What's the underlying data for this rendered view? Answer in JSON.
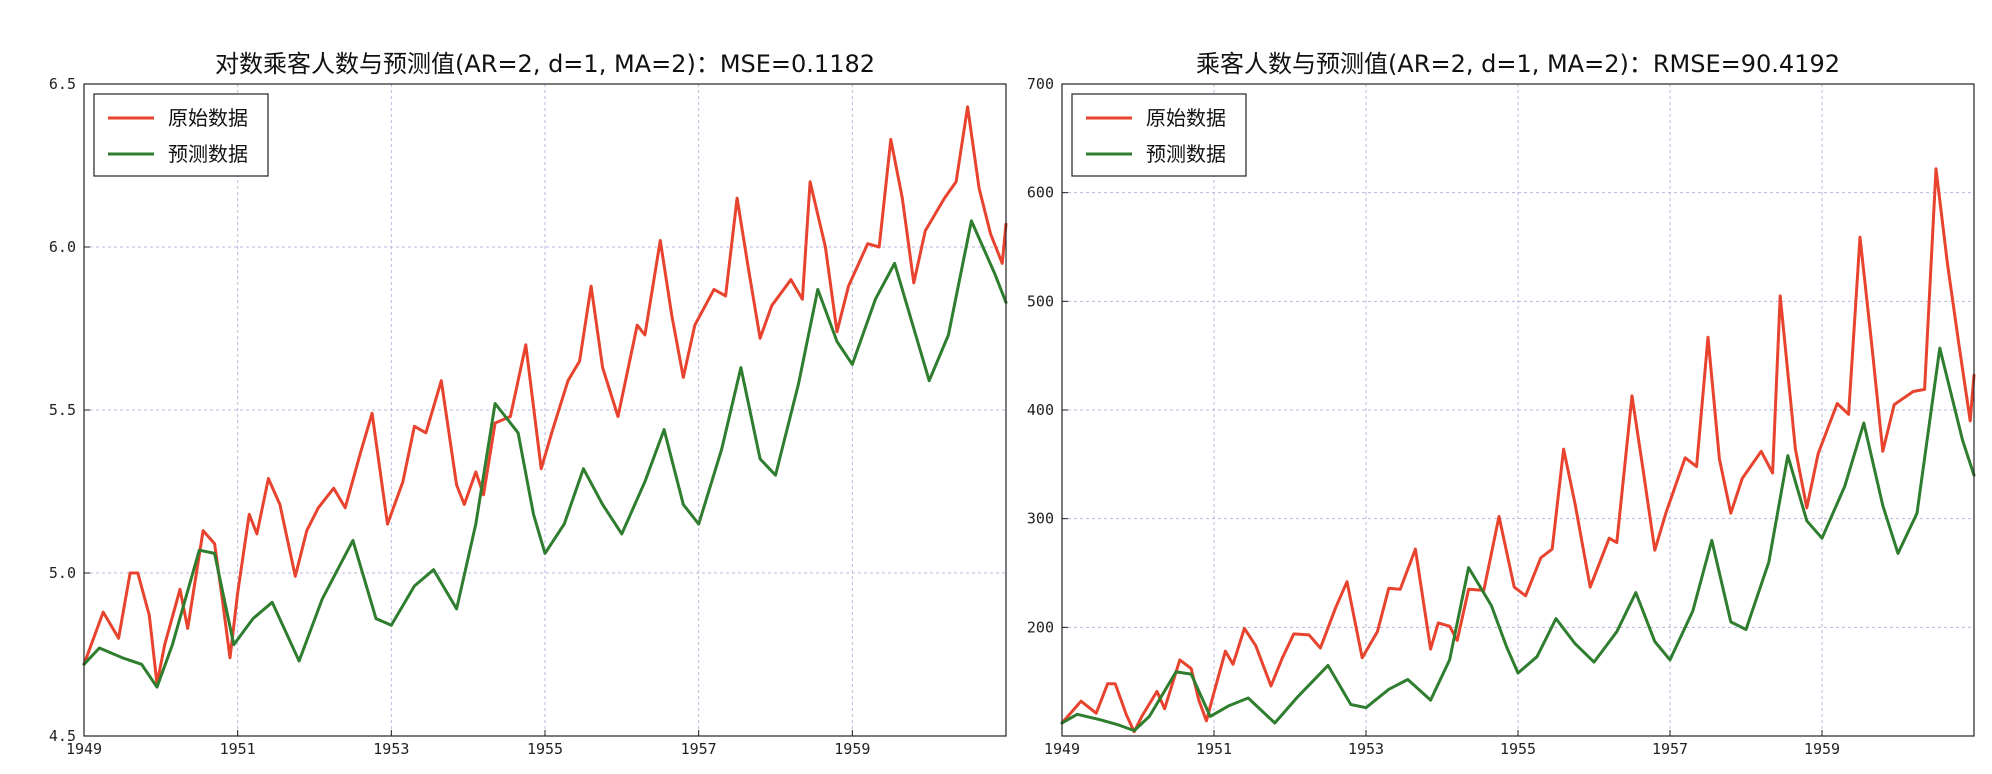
{
  "chart_data": [
    {
      "type": "line",
      "title": "对数乘客人数与预测值(AR=2, d=1, MA=2)：MSE=0.1182",
      "xlabel": "",
      "ylabel": "",
      "xlim": [
        1949,
        1961
      ],
      "ylim": [
        4.5,
        6.5
      ],
      "xticks": [
        "1949",
        "1951",
        "1953",
        "1955",
        "1957",
        "1959"
      ],
      "xtick_values": [
        1949,
        1951,
        1953,
        1955,
        1957,
        1959
      ],
      "yticks": [
        "4.5",
        "5.0",
        "5.5",
        "6.0",
        "6.5"
      ],
      "ytick_values": [
        4.5,
        5.0,
        5.5,
        6.0,
        6.5
      ],
      "grid": true,
      "legend": "top-left",
      "series": [
        {
          "name": "原始数据",
          "color": "#e8432e",
          "x": [
            1949.0,
            1949.25,
            1949.45,
            1949.6,
            1949.7,
            1949.85,
            1949.95,
            1950.05,
            1950.25,
            1950.35,
            1950.55,
            1950.7,
            1950.8,
            1950.9,
            1951.0,
            1951.15,
            1951.25,
            1951.4,
            1951.55,
            1951.75,
            1951.9,
            1952.05,
            1952.25,
            1952.4,
            1952.6,
            1952.75,
            1952.95,
            1953.15,
            1953.3,
            1953.45,
            1953.65,
            1953.85,
            1953.95,
            1954.1,
            1954.2,
            1954.35,
            1954.55,
            1954.75,
            1954.95,
            1955.1,
            1955.3,
            1955.45,
            1955.6,
            1955.75,
            1955.95,
            1956.2,
            1956.3,
            1956.5,
            1956.65,
            1956.8,
            1956.95,
            1957.2,
            1957.35,
            1957.5,
            1957.65,
            1957.8,
            1957.95,
            1958.2,
            1958.35,
            1958.45,
            1958.65,
            1958.8,
            1958.95,
            1959.2,
            1959.35,
            1959.5,
            1959.65,
            1959.8,
            1959.95,
            1960.2,
            1960.35,
            1960.5,
            1960.65,
            1960.8,
            1960.95,
            1961.0
          ],
          "values": [
            4.72,
            4.88,
            4.8,
            5.0,
            5.0,
            4.87,
            4.66,
            4.78,
            4.95,
            4.83,
            5.13,
            5.09,
            4.92,
            4.74,
            4.94,
            5.18,
            5.12,
            5.29,
            5.21,
            4.99,
            5.13,
            5.2,
            5.26,
            5.2,
            5.37,
            5.49,
            5.15,
            5.28,
            5.45,
            5.43,
            5.59,
            5.27,
            5.21,
            5.31,
            5.24,
            5.46,
            5.48,
            5.7,
            5.32,
            5.44,
            5.59,
            5.65,
            5.88,
            5.63,
            5.48,
            5.76,
            5.73,
            6.02,
            5.79,
            5.6,
            5.76,
            5.87,
            5.85,
            6.15,
            5.93,
            5.72,
            5.82,
            5.9,
            5.84,
            6.2,
            6.0,
            5.74,
            5.88,
            6.01,
            6.0,
            6.33,
            6.15,
            5.89,
            6.05,
            6.15,
            6.2,
            6.43,
            6.18,
            6.04,
            5.95,
            6.07
          ]
        },
        {
          "name": "预测数据",
          "color": "#2f7d2f",
          "x": [
            1949.0,
            1949.2,
            1949.5,
            1949.75,
            1949.95,
            1950.15,
            1950.5,
            1950.7,
            1950.95,
            1951.2,
            1951.45,
            1951.8,
            1952.1,
            1952.5,
            1952.8,
            1953.0,
            1953.3,
            1953.55,
            1953.85,
            1954.1,
            1954.35,
            1954.65,
            1954.85,
            1955.0,
            1955.25,
            1955.5,
            1955.75,
            1956.0,
            1956.3,
            1956.55,
            1956.8,
            1957.0,
            1957.3,
            1957.55,
            1957.8,
            1958.0,
            1958.3,
            1958.55,
            1958.8,
            1959.0,
            1959.3,
            1959.55,
            1959.8,
            1960.0,
            1960.25,
            1960.55,
            1960.85,
            1961.0
          ],
          "values": [
            4.72,
            4.77,
            4.74,
            4.72,
            4.65,
            4.78,
            5.07,
            5.06,
            4.78,
            4.86,
            4.91,
            4.73,
            4.92,
            5.1,
            4.86,
            4.84,
            4.96,
            5.01,
            4.89,
            5.15,
            5.52,
            5.43,
            5.18,
            5.06,
            5.15,
            5.32,
            5.21,
            5.12,
            5.28,
            5.44,
            5.21,
            5.15,
            5.38,
            5.63,
            5.35,
            5.3,
            5.58,
            5.87,
            5.71,
            5.64,
            5.84,
            5.95,
            5.75,
            5.59,
            5.73,
            6.08,
            5.92,
            5.83
          ]
        }
      ]
    },
    {
      "type": "line",
      "title": "乘客人数与预测值(AR=2, d=1, MA=2)：RMSE=90.4192",
      "xlabel": "",
      "ylabel": "",
      "xlim": [
        1949,
        1961
      ],
      "ylim": [
        100,
        700
      ],
      "xticks": [
        "1949",
        "1951",
        "1953",
        "1955",
        "1957",
        "1959"
      ],
      "xtick_values": [
        1949,
        1951,
        1953,
        1955,
        1957,
        1959
      ],
      "yticks": [
        "200",
        "300",
        "400",
        "500",
        "600",
        "700"
      ],
      "ytick_values": [
        200,
        300,
        400,
        500,
        600,
        700
      ],
      "grid": true,
      "legend": "top-left",
      "series": [
        {
          "name": "原始数据",
          "color": "#e8432e",
          "x": [
            1949.0,
            1949.25,
            1949.45,
            1949.6,
            1949.7,
            1949.85,
            1949.95,
            1950.05,
            1950.25,
            1950.35,
            1950.55,
            1950.7,
            1950.8,
            1950.9,
            1951.0,
            1951.15,
            1951.25,
            1951.4,
            1951.55,
            1951.75,
            1951.9,
            1952.05,
            1952.25,
            1952.4,
            1952.6,
            1952.75,
            1952.95,
            1953.15,
            1953.3,
            1953.45,
            1953.65,
            1953.85,
            1953.95,
            1954.1,
            1954.2,
            1954.35,
            1954.55,
            1954.75,
            1954.95,
            1955.1,
            1955.3,
            1955.45,
            1955.6,
            1955.75,
            1955.95,
            1956.2,
            1956.3,
            1956.5,
            1956.65,
            1956.8,
            1956.95,
            1957.2,
            1957.35,
            1957.5,
            1957.65,
            1957.8,
            1957.95,
            1958.2,
            1958.35,
            1958.45,
            1958.65,
            1958.8,
            1958.95,
            1959.2,
            1959.35,
            1959.5,
            1959.65,
            1959.8,
            1959.95,
            1960.2,
            1960.35,
            1960.5,
            1960.65,
            1960.8,
            1960.95,
            1961.0
          ],
          "values": [
            112,
            132,
            121,
            148,
            148,
            119,
            104,
            118,
            141,
            125,
            170,
            162,
            133,
            114,
            140,
            178,
            166,
            199,
            183,
            146,
            172,
            194,
            193,
            181,
            218,
            242,
            172,
            196,
            236,
            235,
            272,
            180,
            204,
            201,
            188,
            235,
            234,
            302,
            237,
            229,
            264,
            272,
            364,
            314,
            237,
            282,
            278,
            413,
            343,
            271,
            306,
            356,
            348,
            467,
            355,
            305,
            337,
            362,
            342,
            505,
            364,
            310,
            360,
            406,
            396,
            559,
            463,
            362,
            405,
            417,
            419,
            622,
            535,
            461,
            390,
            432
          ]
        },
        {
          "name": "预测数据",
          "color": "#2f7d2f",
          "x": [
            1949.0,
            1949.2,
            1949.5,
            1949.75,
            1949.95,
            1950.15,
            1950.5,
            1950.7,
            1950.95,
            1951.2,
            1951.45,
            1951.8,
            1952.1,
            1952.5,
            1952.8,
            1953.0,
            1953.3,
            1953.55,
            1953.85,
            1954.1,
            1954.35,
            1954.65,
            1954.85,
            1955.0,
            1955.25,
            1955.5,
            1955.75,
            1956.0,
            1956.3,
            1956.55,
            1956.8,
            1957.0,
            1957.3,
            1957.55,
            1957.8,
            1958.0,
            1958.3,
            1958.55,
            1958.8,
            1959.0,
            1959.3,
            1959.55,
            1959.8,
            1960.0,
            1960.25,
            1960.55,
            1960.85,
            1961.0
          ],
          "values": [
            112,
            120,
            115,
            110,
            105,
            118,
            159,
            157,
            118,
            128,
            135,
            112,
            136,
            165,
            129,
            126,
            143,
            152,
            133,
            170,
            255,
            220,
            182,
            158,
            173,
            208,
            185,
            168,
            196,
            232,
            187,
            170,
            215,
            280,
            205,
            198,
            260,
            358,
            298,
            282,
            330,
            388,
            312,
            268,
            305,
            457,
            372,
            340
          ]
        }
      ]
    }
  ]
}
